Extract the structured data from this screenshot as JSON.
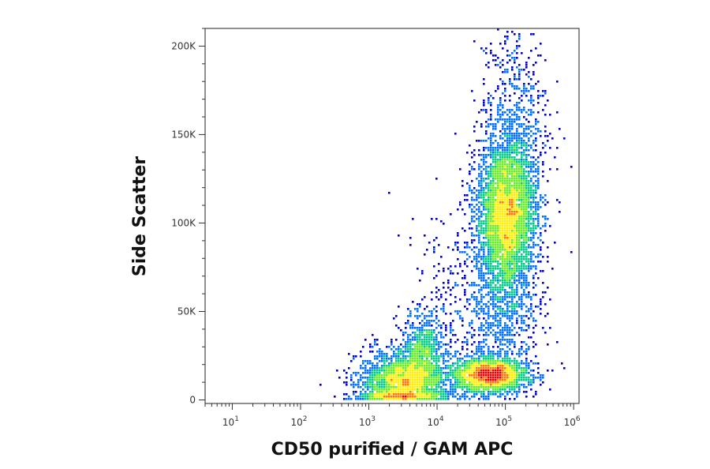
{
  "chart_data": {
    "type": "scatter",
    "subtype": "density-scatter",
    "title": "",
    "xlabel": "CD50 purified / GAM APC",
    "ylabel": "Side Scatter",
    "x_scale": "log",
    "xlim": [
      4,
      1200000
    ],
    "ylim": [
      -2000,
      210000
    ],
    "x_ticks": [
      {
        "base": "10",
        "exp": "1",
        "value": 10
      },
      {
        "base": "10",
        "exp": "2",
        "value": 100
      },
      {
        "base": "10",
        "exp": "3",
        "value": 1000
      },
      {
        "base": "10",
        "exp": "4",
        "value": 10000
      },
      {
        "base": "10",
        "exp": "5",
        "value": 100000
      },
      {
        "base": "10",
        "exp": "6",
        "value": 1000000
      }
    ],
    "y_ticks": [
      {
        "label": "0",
        "value": 0
      },
      {
        "label": "50K",
        "value": 50000
      },
      {
        "label": "100K",
        "value": 100000
      },
      {
        "label": "150K",
        "value": 150000
      },
      {
        "label": "200K",
        "value": 200000
      }
    ],
    "grid": false,
    "legend": "none",
    "color_scale": [
      "#0000cc",
      "#0070ff",
      "#00cc88",
      "#66ee22",
      "#ffee00",
      "#ff7700",
      "#ee0000"
    ],
    "populations": [
      {
        "x_center": 3200,
        "y_center": 9000,
        "x_spread_decades": 0.33,
        "y_spread": 9000,
        "relative_count": 2200,
        "peak_density": "high"
      },
      {
        "x_center": 6000,
        "y_center": 26000,
        "x_spread_decades": 0.16,
        "y_spread": 11000,
        "relative_count": 650,
        "peak_density": "medium"
      },
      {
        "x_center": 60000,
        "y_center": 14000,
        "x_spread_decades": 0.28,
        "y_spread": 5000,
        "relative_count": 2000,
        "peak_density": "high"
      },
      {
        "x_center": 105000,
        "y_center": 104000,
        "x_spread_decades": 0.22,
        "y_spread": 22000,
        "relative_count": 4000,
        "peak_density": "medium"
      },
      {
        "x_center": 140000,
        "y_center": 160000,
        "x_spread_decades": 0.25,
        "y_spread": 28000,
        "relative_count": 550,
        "peak_density": "low"
      },
      {
        "x_center": 100000,
        "y_center": 50000,
        "x_spread_decades": 0.25,
        "y_spread": 16000,
        "relative_count": 500,
        "peak_density": "low"
      },
      {
        "x_center": 18000,
        "y_center": 55000,
        "x_spread_decades": 0.35,
        "y_spread": 25000,
        "relative_count": 320,
        "peak_density": "low"
      }
    ]
  }
}
